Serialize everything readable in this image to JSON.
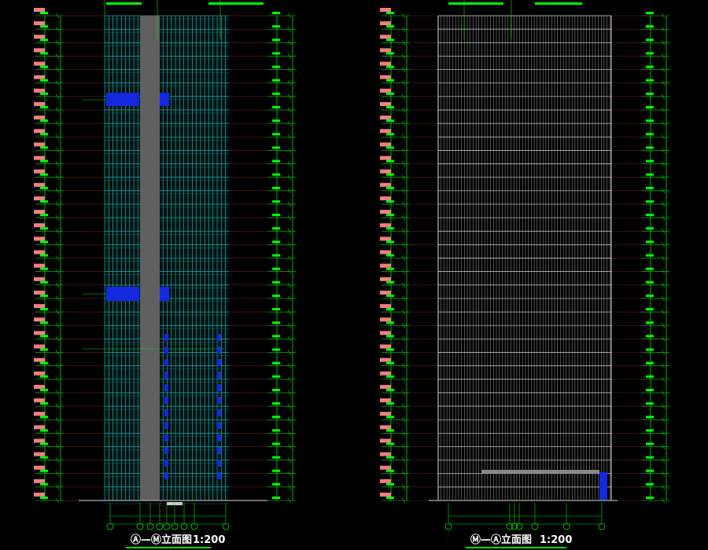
{
  "drawings": [
    {
      "title": "Ⓐ—Ⓜ立面图",
      "scale": "1:200"
    },
    {
      "title": "Ⓜ—Ⓐ立面图",
      "scale": "1:200"
    }
  ]
}
